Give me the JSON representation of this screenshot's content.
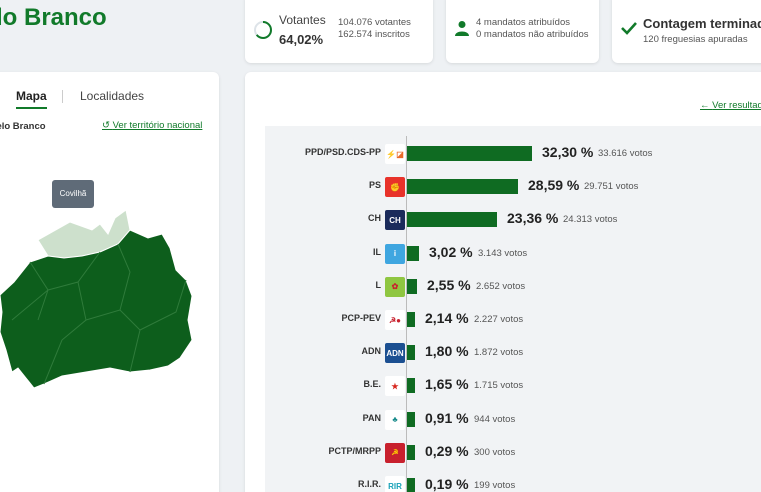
{
  "header": {
    "title": "lo Branco"
  },
  "votantes": {
    "label": "Votantes",
    "pct": "64,02%",
    "votes": "104.076 votantes",
    "inscritos": "162.574 inscritos",
    "fraction": 0.6402
  },
  "mandatos": {
    "atribuidos": "4 mandatos atribuídos",
    "nao_atribuidos": "0 mandatos não atribuídos"
  },
  "contagem": {
    "title": "Contagem terminada",
    "sub": "120 freguesias apuradas"
  },
  "map_panel": {
    "tab_mapa": "Mapa",
    "tab_localidades": "Localidades",
    "district": "stelo Branco",
    "link": "Ver território nacional",
    "tooltip": "Covilhã"
  },
  "results": {
    "link": "Ver resultad"
  },
  "colors": {
    "accent": "#117a2a",
    "bar": "#0f6b22",
    "map_fill": "#0d5e1c",
    "map_highlight": "#cde0cc"
  },
  "parties": [
    {
      "name": "PPD/PSD.CDS-PP",
      "pct": "32,30 %",
      "votes": "33.616 votos",
      "value": 32.3,
      "icon": "psd-cds-logo"
    },
    {
      "name": "PS",
      "pct": "28,59 %",
      "votes": "29.751 votos",
      "value": 28.59,
      "icon": "ps-logo"
    },
    {
      "name": "CH",
      "pct": "23,36 %",
      "votes": "24.313 votos",
      "value": 23.36,
      "icon": "chega-logo"
    },
    {
      "name": "IL",
      "pct": "3,02 %",
      "votes": "3.143 votos",
      "value": 3.02,
      "icon": "il-logo"
    },
    {
      "name": "L",
      "pct": "2,55 %",
      "votes": "2.652 votos",
      "value": 2.55,
      "icon": "livre-logo"
    },
    {
      "name": "PCP-PEV",
      "pct": "2,14 %",
      "votes": "2.227 votos",
      "value": 2.14,
      "icon": "pcp-pev-logo"
    },
    {
      "name": "ADN",
      "pct": "1,80 %",
      "votes": "1.872 votos",
      "value": 1.8,
      "icon": "adn-logo"
    },
    {
      "name": "B.E.",
      "pct": "1,65 %",
      "votes": "1.715 votos",
      "value": 1.65,
      "icon": "be-logo"
    },
    {
      "name": "PAN",
      "pct": "0,91 %",
      "votes": "944 votos",
      "value": 0.91,
      "icon": "pan-logo"
    },
    {
      "name": "PCTP/MRPP",
      "pct": "0,29 %",
      "votes": "300 votos",
      "value": 0.29,
      "icon": "pctp-logo"
    },
    {
      "name": "R.I.R.",
      "pct": "0,19 %",
      "votes": "199 votos",
      "value": 0.19,
      "icon": "rir-logo"
    }
  ]
}
